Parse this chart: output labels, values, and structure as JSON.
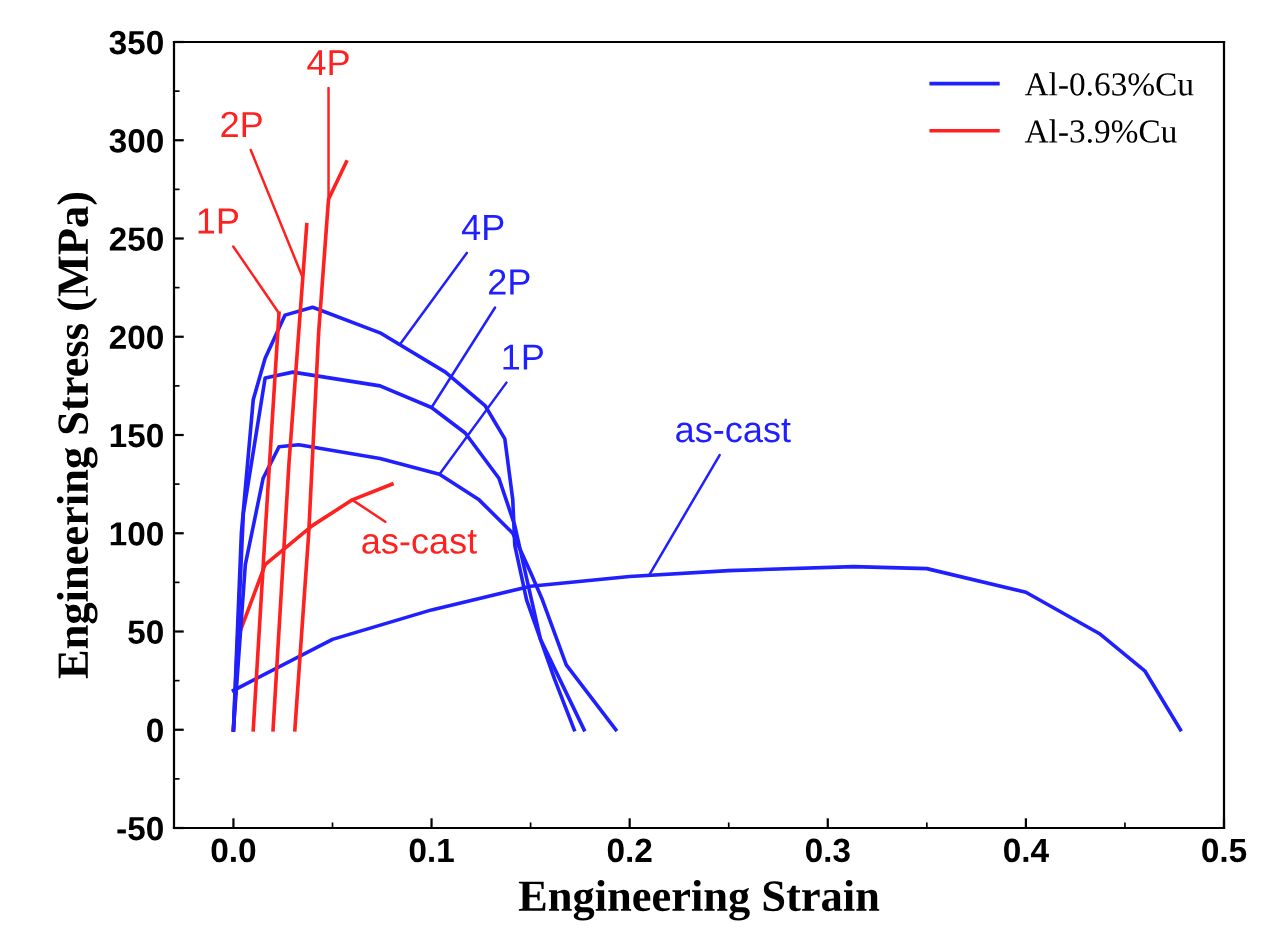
{
  "chart_data": {
    "type": "line",
    "xlabel": "Engineering Strain",
    "ylabel": "Engineering Stress (MPa)",
    "xlim": [
      -0.03,
      0.5
    ],
    "ylim": [
      -50,
      350
    ],
    "xticks": [
      {
        "value": 0,
        "label": "0.0"
      },
      {
        "value": 0.1,
        "label": "0.1"
      },
      {
        "value": 0.2,
        "label": "0.2"
      },
      {
        "value": 0.3,
        "label": "0.3"
      },
      {
        "value": 0.4,
        "label": "0.4"
      },
      {
        "value": 0.5,
        "label": "0.5"
      }
    ],
    "yticks": [
      -50,
      0,
      50,
      100,
      150,
      200,
      250,
      300,
      350
    ],
    "grid": false,
    "legend": "top right",
    "marker": "none",
    "line_style": "solid",
    "series": [
      {
        "name": "Al-0.63%Cu",
        "color": "#2020ff",
        "x": [
          0,
          0.05,
          0.1,
          0.15,
          0.2,
          0.25,
          0.313,
          0.35,
          0.4,
          0.437,
          0.46,
          0.478
        ],
        "values": [
          20,
          46,
          61,
          73,
          78,
          81,
          83,
          82,
          70,
          49,
          30,
          0
        ]
      },
      {
        "name": "Al-3.9%Cu",
        "color": "#ff2020",
        "x": [
          0,
          0.003,
          0.016,
          0.04,
          0.06,
          0.08
        ],
        "values": [
          0,
          49,
          84,
          104,
          117,
          125
        ]
      },
      {
        "color": "#2020ff",
        "x": [
          0,
          0.006,
          0.015,
          0.023,
          0.033,
          0.074,
          0.104,
          0.124,
          0.141,
          0.15,
          0.156,
          0.168,
          0.193
        ],
        "values": [
          0,
          84,
          128,
          144,
          145,
          138,
          130,
          117,
          100,
          80,
          66,
          33,
          0
        ]
      },
      {
        "color": "#2020ff",
        "x": [
          0,
          0.005,
          0.016,
          0.03,
          0.074,
          0.1,
          0.117,
          0.134,
          0.142,
          0.148,
          0.155,
          0.177
        ],
        "values": [
          0,
          110,
          179,
          182,
          175,
          164,
          151,
          128,
          104,
          77,
          46,
          0
        ]
      },
      {
        "color": "#2020ff",
        "x": [
          0,
          0.004,
          0.01,
          0.016,
          0.026,
          0.04,
          0.074,
          0.107,
          0.127,
          0.137,
          0.141,
          0.142,
          0.148,
          0.162,
          0.172
        ],
        "values": [
          0,
          100,
          168,
          189,
          211,
          215,
          202,
          182,
          165,
          148,
          117,
          94,
          66,
          26,
          0
        ]
      },
      {
        "color": "#ff2020",
        "x": [
          0.01,
          0.016,
          0.023
        ],
        "values": [
          0,
          100,
          212
        ]
      },
      {
        "color": "#ff2020",
        "x": [
          0.02,
          0.028,
          0.037
        ],
        "values": [
          0,
          135,
          257
        ]
      },
      {
        "color": "#ff2020",
        "x": [
          0.031,
          0.038,
          0.043,
          0.048,
          0.057
        ],
        "values": [
          0,
          100,
          202,
          270,
          289
        ]
      }
    ],
    "annotations": [
      {
        "text": "1P",
        "x": 0.023,
        "y": 212
      },
      {
        "text": "2P",
        "x": 0.035,
        "y": 230
      },
      {
        "text": "4P",
        "x": 0.048,
        "y": 270
      },
      {
        "text": "as-cast",
        "x": 0.06,
        "y": 117
      },
      {
        "text": "4P",
        "x": 0.084,
        "y": 196
      },
      {
        "text": "2P",
        "x": 0.1,
        "y": 164
      },
      {
        "text": "1P",
        "x": 0.104,
        "y": 130
      },
      {
        "text": "as-cast",
        "x": 0.21,
        "y": 79
      }
    ]
  }
}
